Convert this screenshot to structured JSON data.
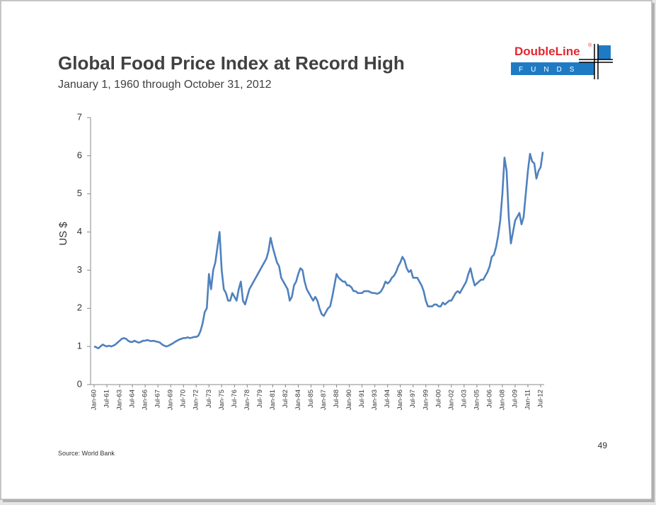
{
  "chart_data": {
    "type": "line",
    "title": "Global Food Price Index at Record High",
    "subtitle": "January 1, 1960 through October 31, 2012",
    "y_label": "US $",
    "source": "Source: World Bank",
    "page_number": "49",
    "logo": {
      "name": "DoubleLine",
      "mark": "®",
      "sub": "FUNDS"
    },
    "color": "#4f81bd",
    "ylim": [
      0,
      7
    ],
    "yticks": [
      0,
      1,
      2,
      3,
      4,
      5,
      6,
      7
    ],
    "grid": false,
    "categories": [
      "Jan-60",
      null,
      null,
      null,
      null,
      null,
      "Jul-61",
      null,
      null,
      null,
      null,
      null,
      "Jan-63",
      null,
      null,
      null,
      null,
      null,
      "Jul-64",
      null,
      null,
      null,
      null,
      null,
      "Jan-66",
      null,
      null,
      null,
      null,
      null,
      "Jul-67",
      null,
      null,
      null,
      null,
      null,
      "Jan-69",
      null,
      null,
      null,
      null,
      null,
      "Jul-70",
      null,
      null,
      null,
      null,
      null,
      "Jan-72",
      null,
      null,
      null,
      null,
      null,
      "Jul-73",
      null,
      null,
      null,
      null,
      null,
      "Jan-75",
      null,
      null,
      null,
      null,
      null,
      "Jul-76",
      null,
      null,
      null,
      null,
      null,
      "Jan-78",
      null,
      null,
      null,
      null,
      null,
      "Jul-79",
      null,
      null,
      null,
      null,
      null,
      "Jan-81",
      null,
      null,
      null,
      null,
      null,
      "Jul-82",
      null,
      null,
      null,
      null,
      null,
      "Jan-84",
      null,
      null,
      null,
      null,
      null,
      "Jul-85",
      null,
      null,
      null,
      null,
      null,
      "Jan-87",
      null,
      null,
      null,
      null,
      null,
      "Jul-88",
      null,
      null,
      null,
      null,
      null,
      "Jan-90",
      null,
      null,
      null,
      null,
      null,
      "Jul-91",
      null,
      null,
      null,
      null,
      null,
      "Jan-93",
      null,
      null,
      null,
      null,
      null,
      "Jul-94",
      null,
      null,
      null,
      null,
      null,
      "Jan-96",
      null,
      null,
      null,
      null,
      null,
      "Jul-97",
      null,
      null,
      null,
      null,
      null,
      "Jan-99",
      null,
      null,
      null,
      null,
      null,
      "Jul-00",
      null,
      null,
      null,
      null,
      null,
      "Jan-02",
      null,
      null,
      null,
      null,
      null,
      "Jul-03",
      null,
      null,
      null,
      null,
      null,
      "Jan-05",
      null,
      null,
      null,
      null,
      null,
      "Jul-06",
      null,
      null,
      null,
      null,
      null,
      "Jan-08",
      null,
      null,
      null,
      null,
      null,
      "Jul-09",
      null,
      null,
      null,
      null,
      null,
      "Jan-11",
      null,
      null,
      null,
      null,
      null,
      "Jul-12",
      null
    ],
    "values": [
      1.0,
      0.98,
      0.95,
      1.0,
      1.05,
      1.02,
      1.0,
      1.02,
      1.0,
      1.02,
      1.05,
      1.1,
      1.15,
      1.2,
      1.22,
      1.2,
      1.15,
      1.12,
      1.12,
      1.15,
      1.12,
      1.1,
      1.12,
      1.15,
      1.15,
      1.17,
      1.15,
      1.14,
      1.15,
      1.13,
      1.12,
      1.1,
      1.05,
      1.02,
      1.0,
      1.02,
      1.05,
      1.08,
      1.12,
      1.15,
      1.18,
      1.2,
      1.22,
      1.22,
      1.24,
      1.22,
      1.23,
      1.25,
      1.25,
      1.28,
      1.4,
      1.6,
      1.9,
      2.0,
      2.9,
      2.5,
      3.0,
      3.2,
      3.6,
      4.0,
      3.0,
      2.5,
      2.4,
      2.2,
      2.2,
      2.4,
      2.3,
      2.2,
      2.5,
      2.7,
      2.2,
      2.1,
      2.3,
      2.5,
      2.6,
      2.7,
      2.8,
      2.9,
      3.0,
      3.1,
      3.2,
      3.3,
      3.5,
      3.85,
      3.6,
      3.4,
      3.2,
      3.1,
      2.8,
      2.7,
      2.6,
      2.5,
      2.2,
      2.3,
      2.6,
      2.7,
      2.9,
      3.05,
      3.0,
      2.7,
      2.5,
      2.4,
      2.3,
      2.2,
      2.3,
      2.2,
      2.0,
      1.85,
      1.8,
      1.9,
      2.0,
      2.05,
      2.3,
      2.6,
      2.9,
      2.8,
      2.75,
      2.7,
      2.7,
      2.6,
      2.6,
      2.55,
      2.45,
      2.45,
      2.4,
      2.4,
      2.4,
      2.45,
      2.45,
      2.45,
      2.42,
      2.4,
      2.4,
      2.38,
      2.4,
      2.45,
      2.55,
      2.7,
      2.65,
      2.7,
      2.8,
      2.85,
      2.95,
      3.1,
      3.2,
      3.35,
      3.25,
      3.05,
      2.95,
      3.0,
      2.8,
      2.8,
      2.8,
      2.7,
      2.6,
      2.45,
      2.2,
      2.05,
      2.05,
      2.05,
      2.1,
      2.1,
      2.05,
      2.05,
      2.15,
      2.1,
      2.15,
      2.2,
      2.2,
      2.3,
      2.4,
      2.45,
      2.4,
      2.5,
      2.6,
      2.7,
      2.9,
      3.05,
      2.8,
      2.6,
      2.65,
      2.7,
      2.75,
      2.75,
      2.85,
      2.95,
      3.1,
      3.35,
      3.4,
      3.6,
      3.9,
      4.3,
      5.0,
      5.95,
      5.6,
      4.4,
      3.7,
      4.0,
      4.3,
      4.4,
      4.5,
      4.2,
      4.4,
      5.0,
      5.6,
      6.05,
      5.85,
      5.8,
      5.4,
      5.6,
      5.7,
      6.1
    ]
  }
}
